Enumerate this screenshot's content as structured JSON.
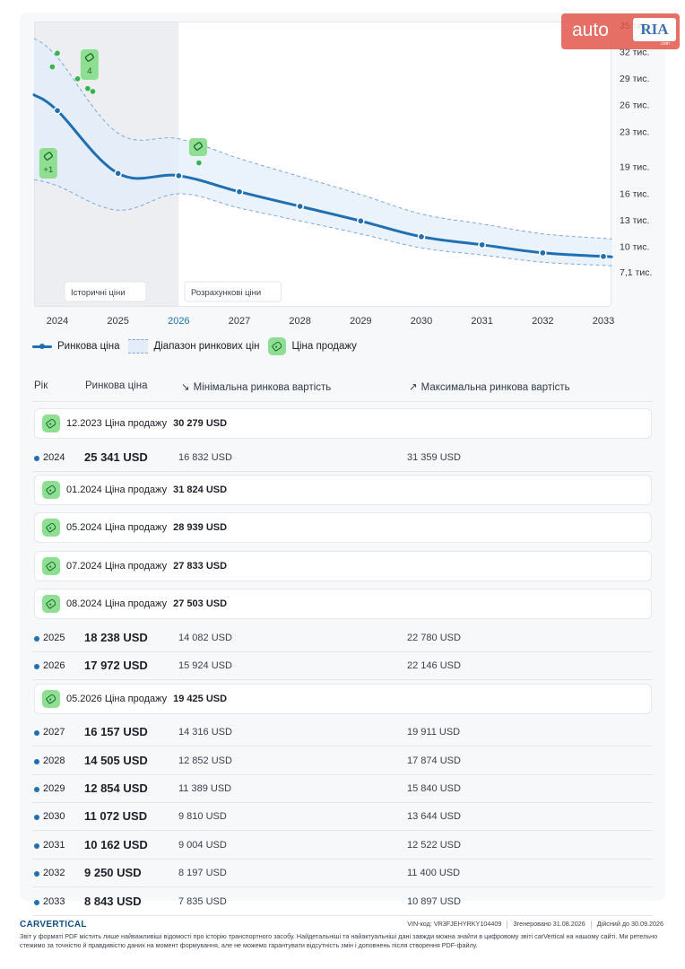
{
  "chart_data": {
    "type": "line",
    "x": [
      2024,
      2025,
      2026,
      2027,
      2028,
      2029,
      2030,
      2031,
      2032,
      2033
    ],
    "highlighted_x": 2026,
    "series": [
      {
        "name": "Ринкова ціна",
        "values": [
          25341,
          18238,
          17972,
          16157,
          14505,
          12854,
          11072,
          10162,
          9250,
          8843
        ]
      }
    ],
    "range": {
      "name": "Діапазон ринкових цін",
      "min": [
        16832,
        14082,
        15924,
        14316,
        12852,
        11389,
        9810,
        9004,
        8197,
        7835
      ],
      "max": [
        31359,
        22780,
        22146,
        19911,
        17874,
        15840,
        13644,
        12522,
        11400,
        10897
      ]
    },
    "sale_prices": {
      "name": "Ціна продажу",
      "points": [
        {
          "date": "12.2023",
          "value": 30279
        },
        {
          "date": "01.2024",
          "value": 31824
        },
        {
          "date": "05.2024",
          "value": 28939
        },
        {
          "date": "07.2024",
          "value": 27833
        },
        {
          "date": "08.2024",
          "value": 27503
        },
        {
          "date": "05.2026",
          "value": 19425
        }
      ],
      "markers": [
        {
          "x": 2024.53,
          "badge": "4"
        },
        {
          "x": 2023.85,
          "badge": "+1"
        },
        {
          "x": 2026.32,
          "badge": ""
        }
      ]
    },
    "ylim": [
      7100,
      35000
    ],
    "ytick_labels": [
      "35 тис.",
      "32 тис.",
      "29 тис.",
      "26 тис.",
      "23 тис.",
      "19 тис.",
      "16 тис.",
      "13 тис.",
      "10 тис.",
      "7,1 тис."
    ],
    "ytick_values": [
      35000,
      32000,
      29000,
      26000,
      23000,
      19000,
      16000,
      13000,
      10000,
      7100
    ],
    "xtick_labels": [
      "2024",
      "2025",
      "2026",
      "2027",
      "2028",
      "2029",
      "2030",
      "2031",
      "2032",
      "2033"
    ],
    "region_labels": {
      "historical": "Історичні ціни",
      "forecast": "Розрахункові ціни"
    },
    "region_split": 2026,
    "grid": false,
    "colors": {
      "line": "#1f6fb2",
      "range_fill": "#e3edf9",
      "range_border": "#7fa8d6",
      "sale": "#8fdf93",
      "sale_point": "#35b24a",
      "highlight_year": "#1f6fb2"
    }
  },
  "legend": {
    "market_price": "Ринкова ціна",
    "price_range": "Діапазон ринкових цін",
    "sale_price": "Ціна продажу"
  },
  "table": {
    "headers": {
      "year": "Рік",
      "market_price": "Ринкова ціна",
      "min": "Мінімальна ринкова вартість",
      "max": "Максимальна ринкова вартість"
    },
    "sales": [
      {
        "label": "12.2023 Ціна продажу",
        "price": "30 279 USD"
      },
      {
        "label": "01.2024 Ціна продажу",
        "price": "31 824 USD"
      },
      {
        "label": "05.2024 Ціна продажу",
        "price": "28 939 USD"
      },
      {
        "label": "07.2024 Ціна продажу",
        "price": "27 833 USD"
      },
      {
        "label": "08.2024 Ціна продажу",
        "price": "27 503 USD"
      },
      {
        "label": "05.2026 Ціна продажу",
        "price": "19 425 USD"
      }
    ],
    "rows": [
      {
        "year": "2024",
        "market": "25 341 USD",
        "min": "16 832 USD",
        "max": "31 359 USD"
      },
      {
        "year": "2025",
        "market": "18 238 USD",
        "min": "14 082 USD",
        "max": "22 780 USD"
      },
      {
        "year": "2026",
        "market": "17 972 USD",
        "min": "15 924 USD",
        "max": "22 146 USD"
      },
      {
        "year": "2027",
        "market": "16 157 USD",
        "min": "14 316 USD",
        "max": "19 911 USD"
      },
      {
        "year": "2028",
        "market": "14 505 USD",
        "min": "12 852 USD",
        "max": "17 874 USD"
      },
      {
        "year": "2029",
        "market": "12 854 USD",
        "min": "11 389 USD",
        "max": "15 840 USD"
      },
      {
        "year": "2030",
        "market": "11 072 USD",
        "min": "9 810 USD",
        "max": "13 644 USD"
      },
      {
        "year": "2031",
        "market": "10 162 USD",
        "min": "9 004 USD",
        "max": "12 522 USD"
      },
      {
        "year": "2032",
        "market": "9 250 USD",
        "min": "8 197 USD",
        "max": "11 400 USD"
      },
      {
        "year": "2033",
        "market": "8 843 USD",
        "min": "7 835 USD",
        "max": "10 897 USD"
      }
    ]
  },
  "watermark": {
    "auto": "auto",
    "ria": "RIA",
    "com": ".com"
  },
  "footer": {
    "logo": "CARVERTICAL",
    "vin": "VIN-код:  VR3FJEHYRKY104409",
    "generated": "Згенеровано  31.08.2026",
    "valid": "Дійсний до  30.09.2026",
    "note": "Звіт у форматі PDF містить лише найважливіші відомості про історію транспортного засобу. Найдетальніші та найактуальніші дані завжди можна знайти в цифровому звіті carVertical на нашому сайті. Ми ретельно стежимо за точністю й правдивістю даних на момент формування, але не можемо гарантувати відсутність змін і доповнень після створення PDF-файлу."
  }
}
